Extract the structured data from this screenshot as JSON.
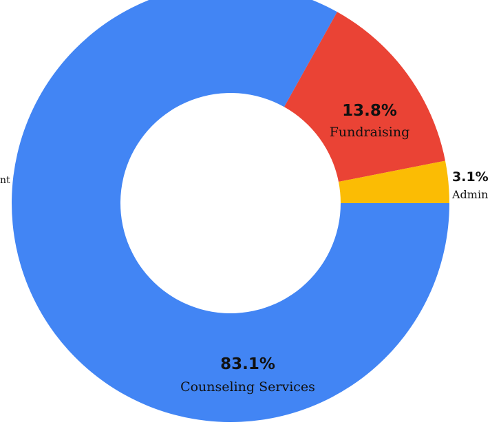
{
  "chart_data": {
    "type": "pie",
    "donut": true,
    "categories": [
      "Counseling Services",
      "Fundraising",
      "Admin"
    ],
    "values": [
      83.1,
      13.8,
      3.1
    ],
    "labels": [
      "83.1%",
      "13.8%",
      "3.1%"
    ],
    "colors": [
      "#4285f4",
      "#ea4335",
      "#fbbc04"
    ],
    "partial_label": "nt",
    "legend": "none"
  }
}
